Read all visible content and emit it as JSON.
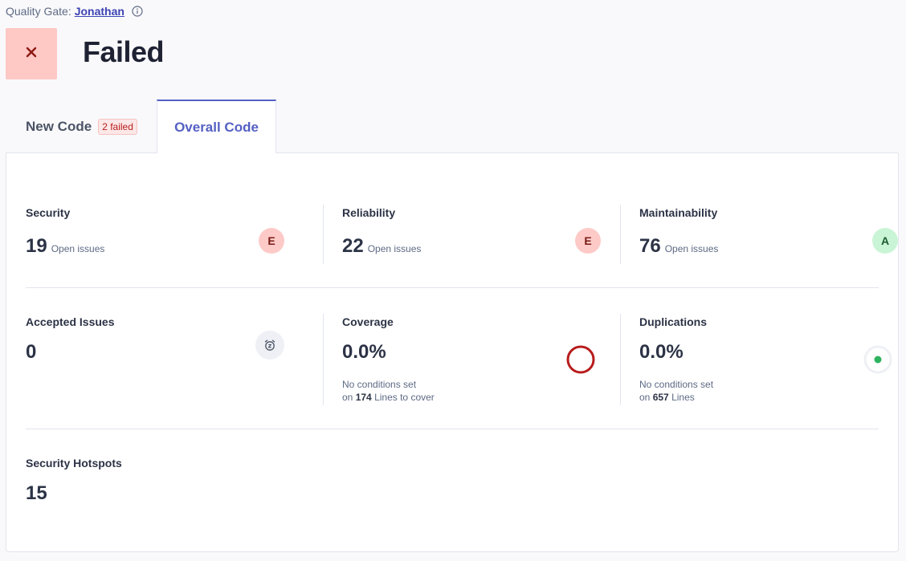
{
  "quality_gate": {
    "label": "Quality Gate:",
    "name": "Jonathan",
    "info_icon": "info-icon",
    "status": "Failed",
    "status_icon": "close-icon",
    "status_color": "#fec8c5"
  },
  "tabs": [
    {
      "label": "New Code",
      "badge": "2 failed"
    },
    {
      "label": "Overall Code",
      "active": true
    }
  ],
  "metrics": {
    "security": {
      "title": "Security",
      "value": "19",
      "sub": "Open issues",
      "grade": "E"
    },
    "reliability": {
      "title": "Reliability",
      "value": "22",
      "sub": "Open issues",
      "grade": "E"
    },
    "maintainability": {
      "title": "Maintainability",
      "value": "76",
      "sub": "Open issues",
      "grade": "A"
    },
    "accepted": {
      "title": "Accepted Issues",
      "value": "0",
      "icon": "alarm-clock-icon"
    },
    "coverage": {
      "title": "Coverage",
      "value": "0.0%",
      "note_line1": "No conditions set",
      "note_prefix": "on",
      "note_count": "174",
      "note_suffix": "Lines to cover",
      "chart_icon": "coverage-ring-icon",
      "color": "#b81c1c"
    },
    "duplications": {
      "title": "Duplications",
      "value": "0.0%",
      "note_line1": "No conditions set",
      "note_prefix": "on",
      "note_count": "657",
      "note_suffix": "Lines",
      "chart_icon": "duplications-dot-icon",
      "color": "#2eb35e"
    },
    "hotspots": {
      "title": "Security Hotspots",
      "value": "15"
    }
  }
}
